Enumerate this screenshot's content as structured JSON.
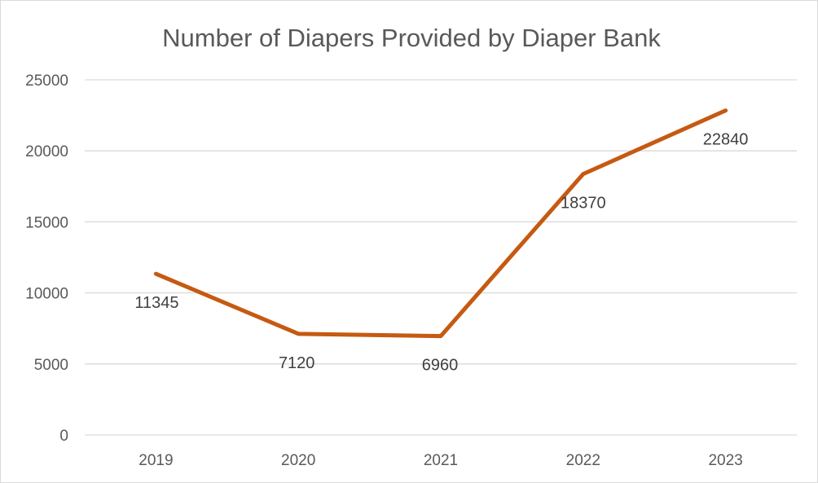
{
  "chart_data": {
    "type": "line",
    "title": "Number of Diapers Provided by Diaper Bank",
    "xlabel": "",
    "ylabel": "",
    "categories": [
      "2019",
      "2020",
      "2021",
      "2022",
      "2023"
    ],
    "series": [
      {
        "values": [
          11345,
          7120,
          6960,
          18370,
          22840
        ],
        "color": "#C55A11"
      }
    ],
    "data_labels": [
      "11345",
      "7120",
      "6960",
      "18370",
      "22840"
    ],
    "ylim": [
      0,
      25000
    ],
    "yticks": [
      0,
      5000,
      10000,
      15000,
      20000,
      25000
    ],
    "ytick_labels": [
      "0",
      "5000",
      "10000",
      "15000",
      "20000",
      "25000"
    ],
    "grid": true,
    "legend": "none",
    "colors": {
      "line": "#C55A11",
      "grid": "#D9D9D9",
      "text": "#595959",
      "label": "#404040"
    }
  }
}
